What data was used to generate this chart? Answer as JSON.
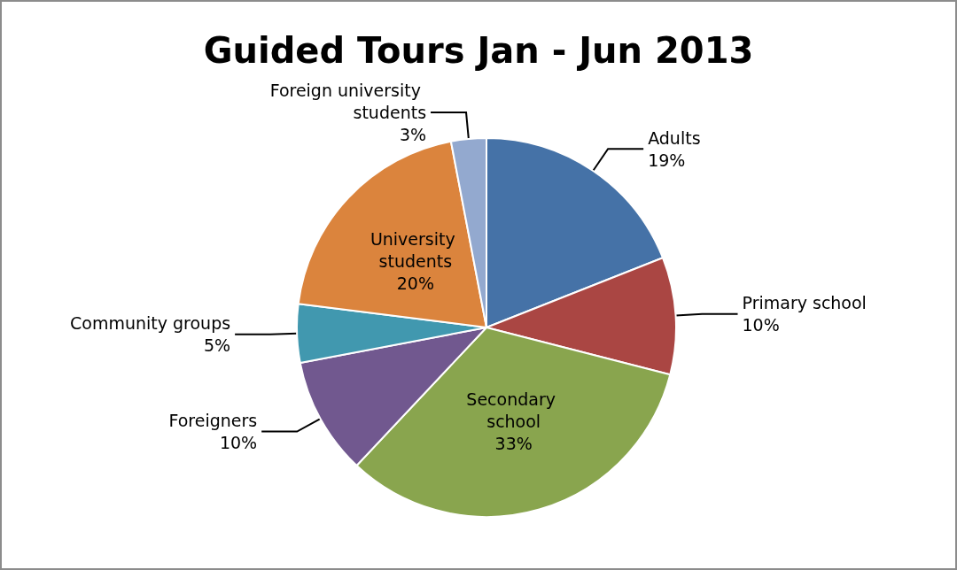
{
  "chart_data": {
    "type": "pie",
    "title": "Guided Tours Jan - Jun 2013",
    "categories": [
      "Adults",
      "Primary school",
      "Secondary school",
      "Foreigners",
      "Community groups",
      "University students",
      "Foreign university students"
    ],
    "values": [
      19,
      10,
      33,
      10,
      5,
      20,
      3
    ],
    "colors": [
      "#4572a7",
      "#aa4643",
      "#89a54e",
      "#71588f",
      "#4198af",
      "#db843d",
      "#93a9cf"
    ],
    "value_labels": [
      "19%",
      "10%",
      "33%",
      "10%",
      "5%",
      "20%",
      "3%"
    ],
    "legend": false
  }
}
